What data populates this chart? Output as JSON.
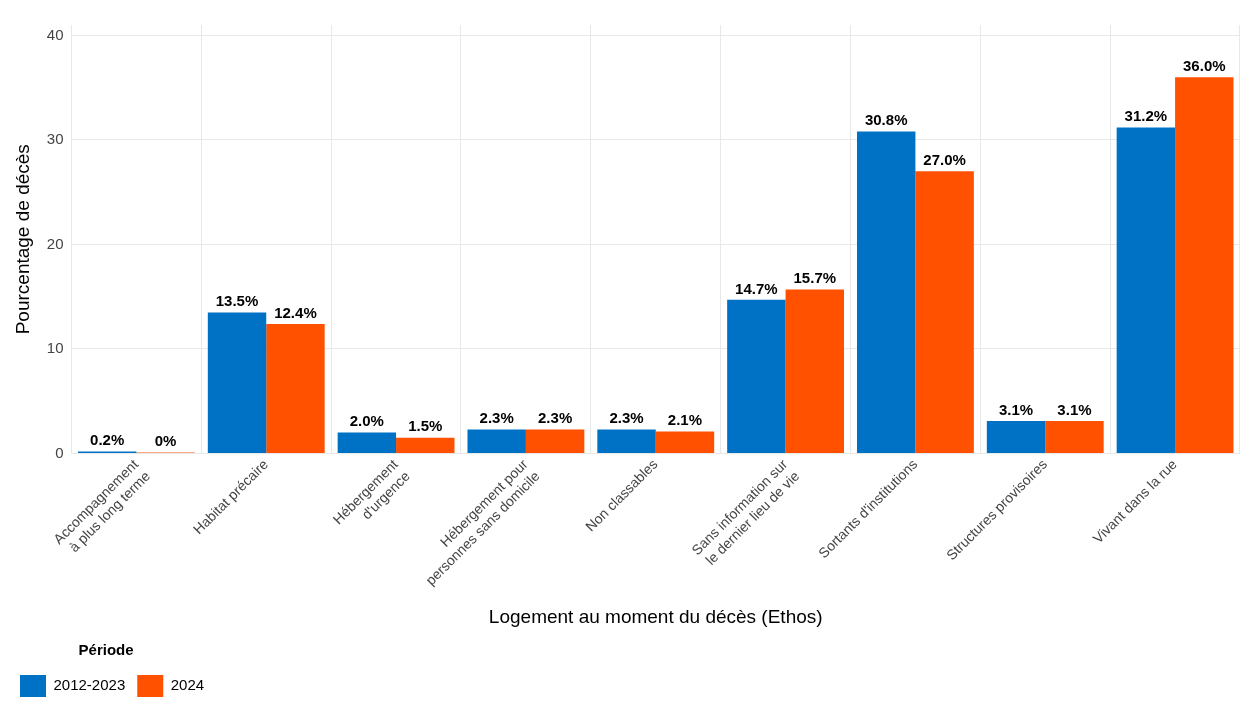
{
  "chart_data": {
    "type": "bar",
    "xlabel": "Logement au moment du décès (Ethos)",
    "ylabel": "Pourcentage de décès",
    "legend_title": "Période",
    "categories": [
      "Accompagnement\nà plus long terme",
      "Habitat précaire",
      "Hébergement\nd'urgence",
      "Hébergement pour\npersonnes sans domicile",
      "Non classables",
      "Sans information sur\nle dernier lieu de vie",
      "Sortants d'institutions",
      "Structures provisoires",
      "Vivant dans la rue"
    ],
    "series": [
      {
        "name": "2012-2023",
        "color": "#0072c6",
        "values": [
          0.2,
          13.5,
          2.0,
          2.3,
          2.3,
          14.7,
          30.8,
          3.1,
          31.2
        ],
        "value_labels": [
          "0.2%",
          "13.5%",
          "2.0%",
          "2.3%",
          "2.3%",
          "14.7%",
          "30.8%",
          "3.1%",
          "31.2%"
        ]
      },
      {
        "name": "2024",
        "color": "#ff5100",
        "values": [
          0,
          12.4,
          1.5,
          2.3,
          2.1,
          15.7,
          27.0,
          3.1,
          36.0
        ],
        "value_labels": [
          "0%",
          "12.4%",
          "1.5%",
          "2.3%",
          "2.1%",
          "15.7%",
          "27.0%",
          "3.1%",
          "36.0%"
        ]
      }
    ],
    "ylim": [
      0,
      41
    ],
    "yticks": [
      0,
      10,
      20,
      30,
      40
    ],
    "grid": true,
    "legend": "bottom left"
  }
}
